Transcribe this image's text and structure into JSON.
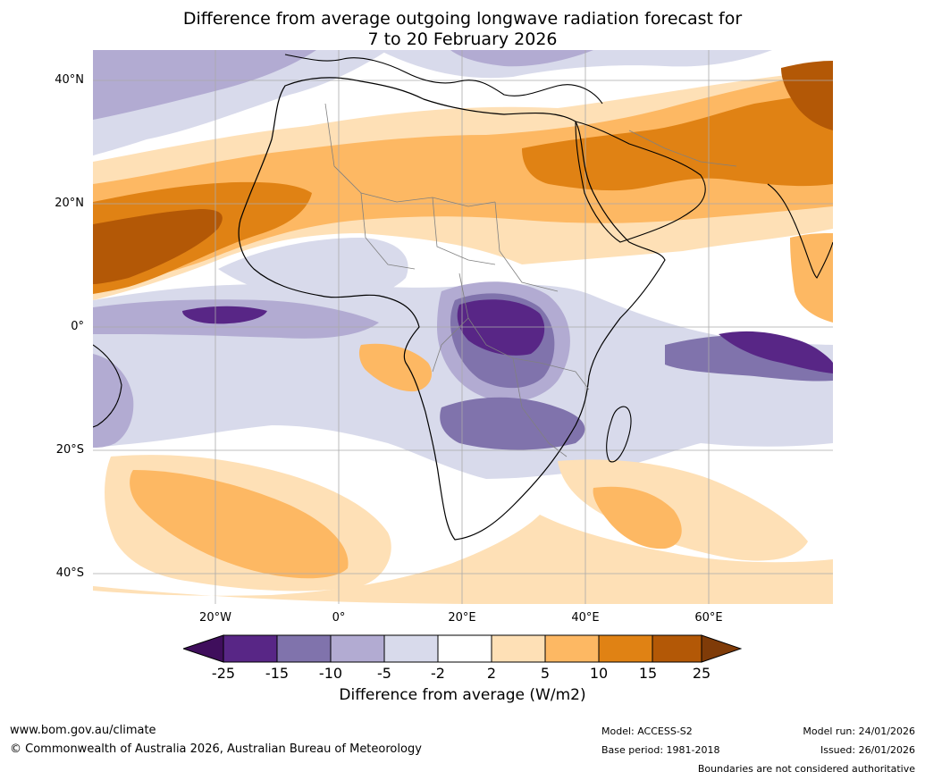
{
  "title": {
    "line1": "Difference from average outgoing longwave radiation forecast for",
    "line2": "7 to 20 February 2026"
  },
  "map": {
    "lat_labels": [
      "40°N",
      "20°N",
      "0°",
      "20°S",
      "40°S"
    ],
    "lon_labels": [
      "20°W",
      "0°",
      "20°E",
      "40°E",
      "60°E"
    ]
  },
  "colorbar": {
    "ticks": [
      "-25",
      "-15",
      "-10",
      "-5",
      "-2",
      "2",
      "5",
      "10",
      "15",
      "25"
    ],
    "colors": [
      "#3f0e5c",
      "#582686",
      "#8073ac",
      "#b2abd2",
      "#d8daeb",
      "#ffffff",
      "#fee0b6",
      "#fdb863",
      "#e08214",
      "#b35806",
      "#7f3b08"
    ],
    "label": "Difference from average (W/m2)"
  },
  "footer": {
    "website": "www.bom.gov.au/climate",
    "copyright": "© Commonwealth of Australia 2026, Australian Bureau of Meteorology",
    "model": "Model: ACCESS-S2",
    "base_period": "Base period: 1981-2018",
    "model_run": "Model run: 24/01/2026",
    "issued": "Issued: 26/01/2026",
    "disclaimer": "Boundaries are not considered authoritative"
  }
}
